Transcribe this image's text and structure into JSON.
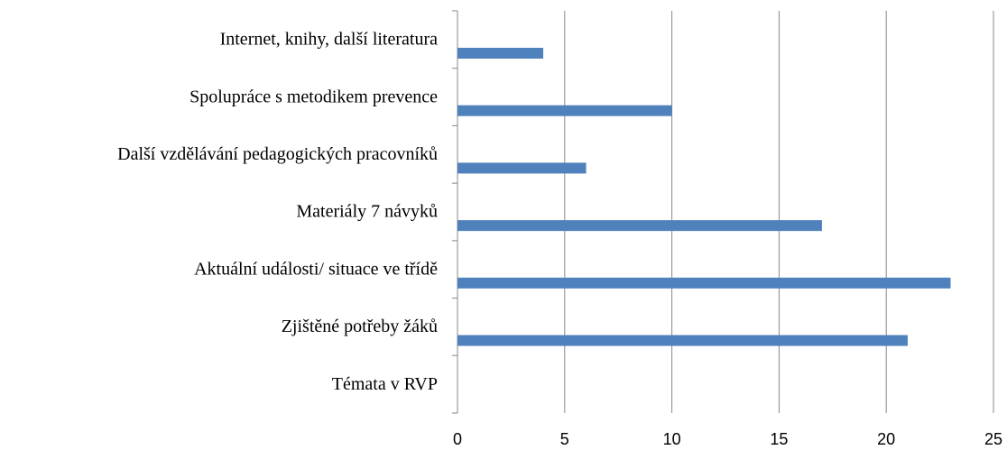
{
  "chart_data": {
    "type": "bar",
    "orientation": "horizontal",
    "categories": [
      "Internet, knihy, další literatura",
      "Spolupráce s metodikem prevence",
      "Další vzdělávání pedagogických pracovníků",
      "Materiály 7 návyků",
      "Aktuální události/ situace ve třídě",
      "Zjištěné potřeby žáků",
      "Témata v RVP"
    ],
    "values": [
      4,
      10,
      6,
      17,
      23,
      21,
      0
    ],
    "color": "#4f81bd",
    "xlim": [
      0,
      25
    ],
    "xticks": [
      0,
      5,
      10,
      15,
      20,
      25
    ],
    "grid": true
  }
}
